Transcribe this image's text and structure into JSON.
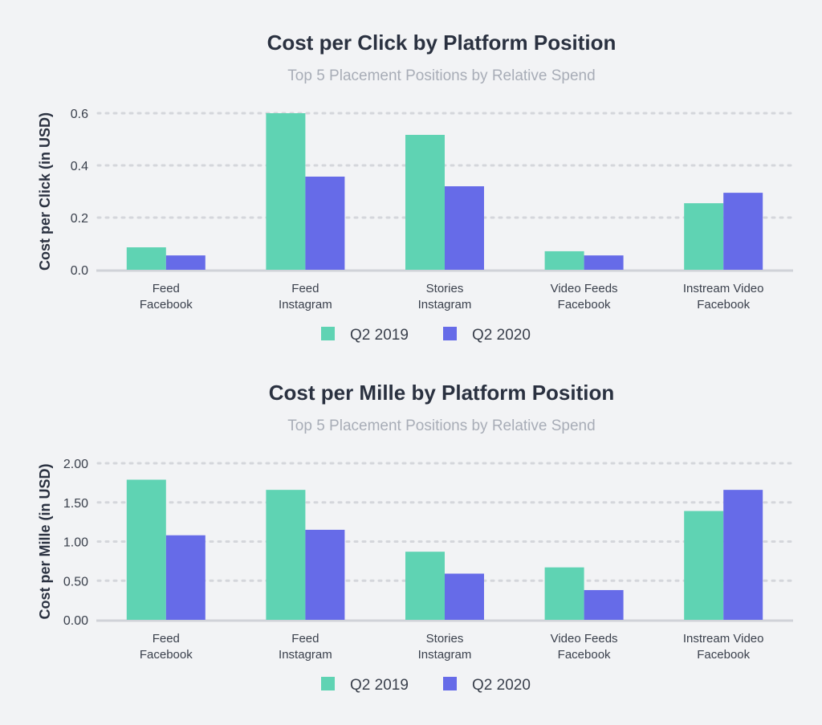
{
  "colors": {
    "series_2019": "#5fd3b3",
    "series_2020": "#666be8",
    "grid": "#d4d6db",
    "axis": "#d0d2d8"
  },
  "chart_data": [
    {
      "type": "bar",
      "title": "Cost per Click by Platform Position",
      "subtitle": "Top 5 Placement Positions by Relative Spend",
      "xlabel": "",
      "ylabel": "Cost per Click (in USD)",
      "ylim": [
        0,
        0.6
      ],
      "yticks": [
        0.0,
        0.2,
        0.4,
        0.6
      ],
      "ytick_labels": [
        "0.0",
        "0.2",
        "0.4",
        "0.6"
      ],
      "grid": true,
      "legend_position": "bottom",
      "categories": [
        [
          "Feed",
          "Facebook"
        ],
        [
          "Feed",
          "Instagram"
        ],
        [
          "Stories",
          "Instagram"
        ],
        [
          "Video Feeds",
          "Facebook"
        ],
        [
          "Instream Video",
          "Facebook"
        ]
      ],
      "series": [
        {
          "name": "Q2 2019",
          "values": [
            0.086,
            0.6,
            0.517,
            0.071,
            0.255
          ]
        },
        {
          "name": "Q2 2020",
          "values": [
            0.055,
            0.357,
            0.32,
            0.055,
            0.295
          ]
        }
      ]
    },
    {
      "type": "bar",
      "title": "Cost per Mille by Platform Position",
      "subtitle": "Top 5 Placement Positions by Relative Spend",
      "xlabel": "",
      "ylabel": "Cost per Mille (in USD)",
      "ylim": [
        0,
        2.0
      ],
      "yticks": [
        0.0,
        0.5,
        1.0,
        1.5,
        2.0
      ],
      "ytick_labels": [
        "0.00",
        "0.50",
        "1.00",
        "1.50",
        "2.00"
      ],
      "grid": true,
      "legend_position": "bottom",
      "categories": [
        [
          "Feed",
          "Facebook"
        ],
        [
          "Feed",
          "Instagram"
        ],
        [
          "Stories",
          "Instagram"
        ],
        [
          "Video Feeds",
          "Facebook"
        ],
        [
          "Instream Video",
          "Facebook"
        ]
      ],
      "series": [
        {
          "name": "Q2 2019",
          "values": [
            1.79,
            1.66,
            0.87,
            0.67,
            1.39
          ]
        },
        {
          "name": "Q2 2020",
          "values": [
            1.08,
            1.15,
            0.59,
            0.38,
            1.66
          ]
        }
      ]
    }
  ]
}
